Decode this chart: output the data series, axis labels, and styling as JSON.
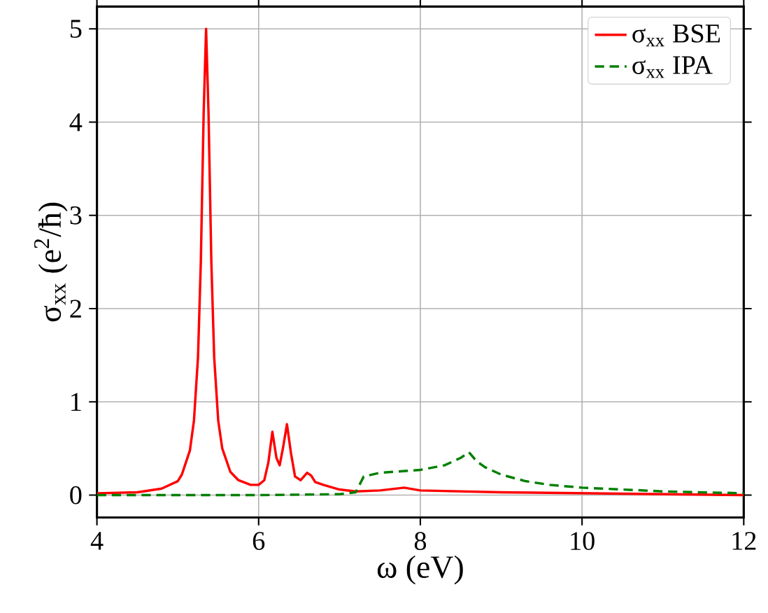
{
  "chart_data": {
    "type": "line",
    "xlabel": "ω (eV)",
    "ylabel": "σ$_{xx}$ (e$^{2}$/ħ)",
    "xlim": [
      4,
      12
    ],
    "ylim": [
      -0.24,
      5.24
    ],
    "xticks": [
      4,
      6,
      8,
      10,
      12
    ],
    "yticks": [
      0,
      1,
      2,
      3,
      4,
      5
    ],
    "grid": true,
    "legend": "top right",
    "series": [
      {
        "name": "σ$_{xx}$ BSE",
        "color": "#ff0000",
        "line_style": "solid",
        "x": [
          4.0,
          4.5,
          4.8,
          5.0,
          5.05,
          5.15,
          5.2,
          5.25,
          5.285,
          5.32,
          5.35,
          5.38,
          5.415,
          5.45,
          5.5,
          5.55,
          5.65,
          5.75,
          5.9,
          6.0,
          6.07,
          6.12,
          6.17,
          6.22,
          6.26,
          6.3,
          6.35,
          6.4,
          6.45,
          6.52,
          6.6,
          6.65,
          6.7,
          6.8,
          7.0,
          7.2,
          7.5,
          7.8,
          8.0,
          8.5,
          9.0,
          10.0,
          11.0,
          12.0
        ],
        "values": [
          0.02,
          0.03,
          0.07,
          0.15,
          0.22,
          0.48,
          0.8,
          1.48,
          2.5,
          4.1,
          5.0,
          4.1,
          2.5,
          1.48,
          0.8,
          0.5,
          0.25,
          0.16,
          0.11,
          0.11,
          0.16,
          0.35,
          0.68,
          0.4,
          0.32,
          0.5,
          0.76,
          0.45,
          0.2,
          0.16,
          0.24,
          0.21,
          0.14,
          0.11,
          0.06,
          0.04,
          0.05,
          0.08,
          0.05,
          0.04,
          0.03,
          0.02,
          0.01,
          0.0
        ]
      },
      {
        "name": "σ$_{xx}$ IPA",
        "color": "#008000",
        "line_style": "dashed",
        "x": [
          4.0,
          5.0,
          6.0,
          7.0,
          7.2,
          7.3,
          7.5,
          8.0,
          8.3,
          8.5,
          8.6,
          8.7,
          8.8,
          9.0,
          9.3,
          9.6,
          10.0,
          10.5,
          11.0,
          11.5,
          12.0
        ],
        "values": [
          0.0,
          0.0,
          0.0,
          0.01,
          0.03,
          0.2,
          0.24,
          0.27,
          0.32,
          0.4,
          0.46,
          0.36,
          0.3,
          0.22,
          0.15,
          0.11,
          0.08,
          0.06,
          0.04,
          0.03,
          0.02
        ]
      }
    ]
  }
}
